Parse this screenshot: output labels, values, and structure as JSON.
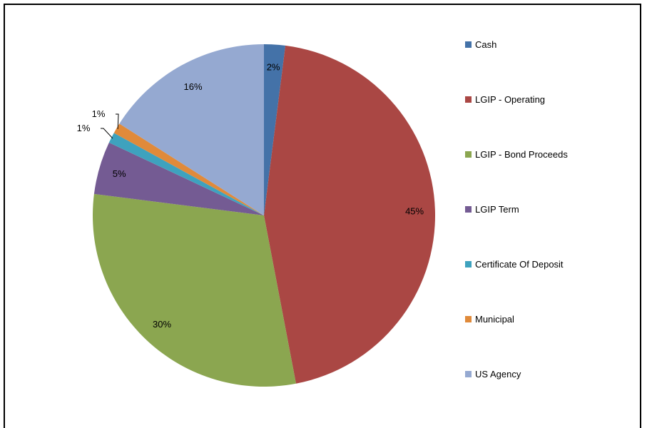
{
  "chart_data": {
    "type": "pie",
    "title": "",
    "legend_position": "right",
    "slices": [
      {
        "name": "Cash",
        "value": 2,
        "label": "2%",
        "color": "#4472A8"
      },
      {
        "name": "LGIP - Operating",
        "value": 45,
        "label": "45%",
        "color": "#AA4744"
      },
      {
        "name": "LGIP - Bond Proceeds",
        "value": 30,
        "label": "30%",
        "color": "#8BA650"
      },
      {
        "name": "LGIP Term",
        "value": 5,
        "label": "5%",
        "color": "#745B93"
      },
      {
        "name": "Certificate Of Deposit",
        "value": 1,
        "label": "1%",
        "color": "#3EA2BE"
      },
      {
        "name": "Municipal",
        "value": 1,
        "label": "1%",
        "color": "#E08A3A"
      },
      {
        "name": "US Agency",
        "value": 16,
        "label": "16%",
        "color": "#95A9D1"
      }
    ]
  }
}
